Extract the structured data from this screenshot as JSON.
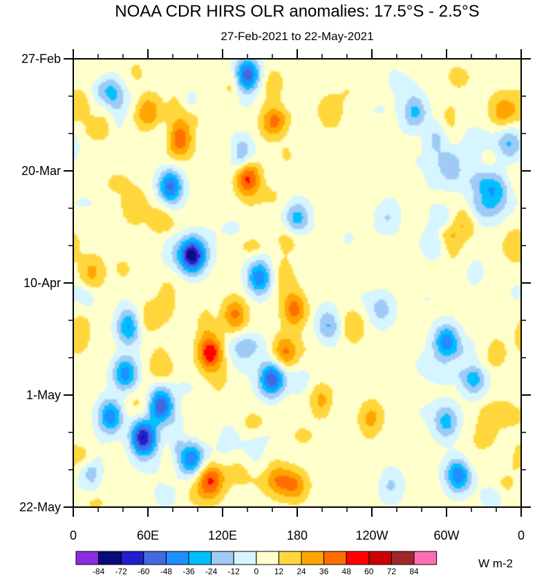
{
  "chart_data": {
    "type": "heatmap",
    "title": "NOAA CDR HIRS OLR anomalies: 17.5°S - 2.5°S",
    "subtitle": "27-Feb-2021 to 22-May-2021",
    "xlabel": "",
    "ylabel": "",
    "x_ticks": [
      {
        "lon": 0,
        "label": "0"
      },
      {
        "lon": 60,
        "label": "60E"
      },
      {
        "lon": 120,
        "label": "120E"
      },
      {
        "lon": 180,
        "label": "180"
      },
      {
        "lon": 240,
        "label": "120W"
      },
      {
        "lon": 300,
        "label": "60W"
      },
      {
        "lon": 360,
        "label": "0"
      }
    ],
    "x_range": [
      0,
      360
    ],
    "y_ticks": [
      {
        "day": 0,
        "label": "27-Feb"
      },
      {
        "day": 21,
        "label": "20-Mar"
      },
      {
        "day": 42,
        "label": "10-Apr"
      },
      {
        "day": 63,
        "label": "1-May"
      },
      {
        "day": 84,
        "label": "22-May"
      }
    ],
    "y_range_days": [
      0,
      84
    ],
    "colorbar": {
      "units": "W m-2",
      "levels": [
        -84,
        -72,
        -60,
        -48,
        -36,
        -24,
        -12,
        0,
        12,
        24,
        36,
        48,
        60,
        72,
        84
      ],
      "colors": [
        "#8b2be2",
        "#0a0a7a",
        "#1f1fcc",
        "#4169e1",
        "#1e8fff",
        "#00bfff",
        "#9ecaf5",
        "#d6f5ff",
        "#ffffcc",
        "#ffd73c",
        "#ffa500",
        "#ff6e00",
        "#ff0000",
        "#cc0000",
        "#a0282d",
        "#ff6eb4"
      ]
    },
    "features": [
      {
        "lon": 70,
        "day": 65,
        "value": -66
      },
      {
        "lon": 57,
        "day": 71,
        "value": -72
      },
      {
        "lon": 30,
        "day": 67,
        "value": -50
      },
      {
        "lon": 45,
        "day": 50,
        "value": -56
      },
      {
        "lon": 42,
        "day": 59,
        "value": -48
      },
      {
        "lon": 95,
        "day": 75,
        "value": -52
      },
      {
        "lon": 95,
        "day": 37,
        "value": -70
      },
      {
        "lon": 78,
        "day": 24,
        "value": -60
      },
      {
        "lon": 150,
        "day": 41,
        "value": -54
      },
      {
        "lon": 160,
        "day": 60,
        "value": -58
      },
      {
        "lon": 140,
        "day": 3,
        "value": -60
      },
      {
        "lon": 135,
        "day": 18,
        "value": -36
      },
      {
        "lon": 180,
        "day": 30,
        "value": -36
      },
      {
        "lon": 205,
        "day": 50,
        "value": -30
      },
      {
        "lon": 30,
        "day": 6,
        "value": -30
      },
      {
        "lon": 110,
        "day": 55,
        "value": 50
      },
      {
        "lon": 130,
        "day": 48,
        "value": 34
      },
      {
        "lon": 85,
        "day": 15,
        "value": 38
      },
      {
        "lon": 60,
        "day": 10,
        "value": 30
      },
      {
        "lon": 140,
        "day": 22,
        "value": 44
      },
      {
        "lon": 170,
        "day": 55,
        "value": 34
      },
      {
        "lon": 178,
        "day": 47,
        "value": 36
      },
      {
        "lon": 160,
        "day": 12,
        "value": 32
      },
      {
        "lon": 178,
        "day": 80,
        "value": 38
      },
      {
        "lon": 165,
        "day": 79,
        "value": 30
      },
      {
        "lon": 110,
        "day": 79,
        "value": 28
      },
      {
        "lon": 15,
        "day": 40,
        "value": 22
      },
      {
        "lon": 10,
        "day": 75,
        "value": 18
      },
      {
        "lon": 205,
        "day": 10,
        "value": 20
      },
      {
        "lon": 240,
        "day": 67,
        "value": 20
      },
      {
        "lon": 200,
        "day": 64,
        "value": 24
      },
      {
        "lon": 225,
        "day": 50,
        "value": 20
      },
      {
        "lon": 345,
        "day": 10,
        "value": 20
      },
      {
        "lon": 310,
        "day": 20,
        "value": 16
      },
      {
        "lon": 355,
        "day": 35,
        "value": 18
      },
      {
        "lon": 300,
        "day": 53,
        "value": -48
      },
      {
        "lon": 300,
        "day": 68,
        "value": -34
      },
      {
        "lon": 310,
        "day": 78,
        "value": -56
      },
      {
        "lon": 322,
        "day": 60,
        "value": -36
      },
      {
        "lon": 275,
        "day": 10,
        "value": -36
      },
      {
        "lon": 305,
        "day": 20,
        "value": -38
      },
      {
        "lon": 350,
        "day": 16,
        "value": -28
      },
      {
        "lon": 340,
        "day": 24,
        "value": -26
      },
      {
        "lon": 248,
        "day": 47,
        "value": -22
      },
      {
        "lon": 252,
        "day": 30,
        "value": -16
      },
      {
        "lon": 255,
        "day": 80,
        "value": -20
      },
      {
        "lon": 290,
        "day": 35,
        "value": -20
      },
      {
        "lon": 315,
        "day": 30,
        "value": 28
      },
      {
        "lon": 340,
        "day": 55,
        "value": 14
      }
    ]
  }
}
